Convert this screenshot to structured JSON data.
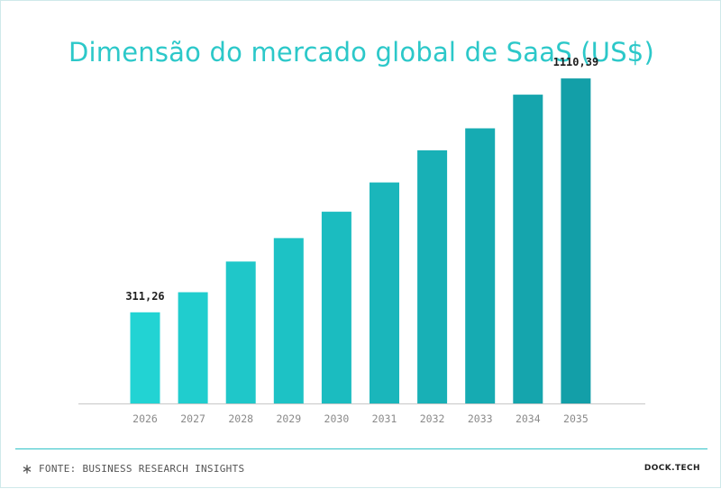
{
  "chart_data": {
    "type": "bar",
    "title": "Dimensão do mercado global de SaaS (US$)",
    "categories": [
      "2026",
      "2027",
      "2028",
      "2029",
      "2030",
      "2031",
      "2032",
      "2033",
      "2034",
      "2035"
    ],
    "values": [
      311.26,
      380,
      485,
      565,
      655,
      755,
      865,
      940,
      1055,
      1110.39
    ],
    "data_labels": {
      "2026": "311,26",
      "2035": "1110,39"
    },
    "xlabel": "",
    "ylabel": "",
    "ylim": [
      0,
      1200
    ],
    "grid": false,
    "colors": {
      "start": "#22d3d3",
      "end": "#139fa8",
      "label": "#1e1e1e",
      "tick": "#8a8a8a",
      "axis": "#c8c8c8"
    }
  },
  "footer": {
    "source": "FONTE: BUSINESS RESEARCH INSIGHTS",
    "source_icon": "asterisk-icon",
    "brand": "DOCK.TECH"
  },
  "colors": {
    "title": "#2cc8c9",
    "footer_line": "#31c3c7"
  }
}
